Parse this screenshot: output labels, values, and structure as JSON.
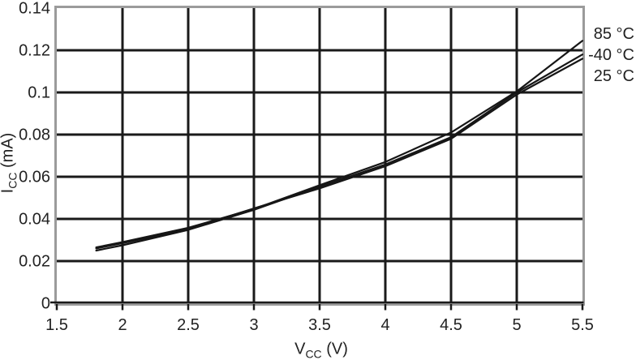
{
  "chart_data": {
    "type": "line",
    "title": "",
    "xlabel": {
      "pre": "V",
      "sub": "CC",
      "post": " (V)"
    },
    "ylabel": {
      "pre": "I",
      "sub": "CC",
      "post": " (mA)"
    },
    "xlim": [
      1.5,
      5.5
    ],
    "ylim": [
      0,
      0.14
    ],
    "grid": true,
    "legend_position": "right-outside",
    "x_ticks": {
      "values": [
        1.5,
        2,
        2.5,
        3,
        3.5,
        4,
        4.5,
        5,
        5.5
      ],
      "labels": [
        "1.5",
        "2",
        "2.5",
        "3",
        "3.5",
        "4",
        "4.5",
        "5",
        "5.5"
      ]
    },
    "y_ticks": {
      "values": [
        0,
        0.02,
        0.04,
        0.06,
        0.08,
        0.1,
        0.12,
        0.14
      ],
      "labels": [
        "0",
        "0.02",
        "0.04",
        "0.06",
        "0.08",
        "0.1",
        "0.12",
        "0.14"
      ]
    },
    "x": [
      1.8,
      2.0,
      2.5,
      3.0,
      3.5,
      4.0,
      4.5,
      5.0,
      5.5
    ],
    "series": [
      {
        "name": "85 °C",
        "values": [
          0.0265,
          0.029,
          0.0358,
          0.0447,
          0.056,
          0.067,
          0.081,
          0.1005,
          0.1245
        ]
      },
      {
        "name": "-40 °C",
        "values": [
          0.025,
          0.0275,
          0.0348,
          0.0443,
          0.0553,
          0.0658,
          0.0788,
          0.1,
          0.118
        ]
      },
      {
        "name": "25 °C",
        "values": [
          0.026,
          0.0285,
          0.0352,
          0.045,
          0.0545,
          0.065,
          0.078,
          0.099,
          0.116
        ]
      }
    ],
    "colors": {
      "line": "#161616",
      "grid": "#1a1a1a",
      "frame": "#9b9b9b",
      "text": "#222222",
      "background": "#ffffff"
    }
  }
}
